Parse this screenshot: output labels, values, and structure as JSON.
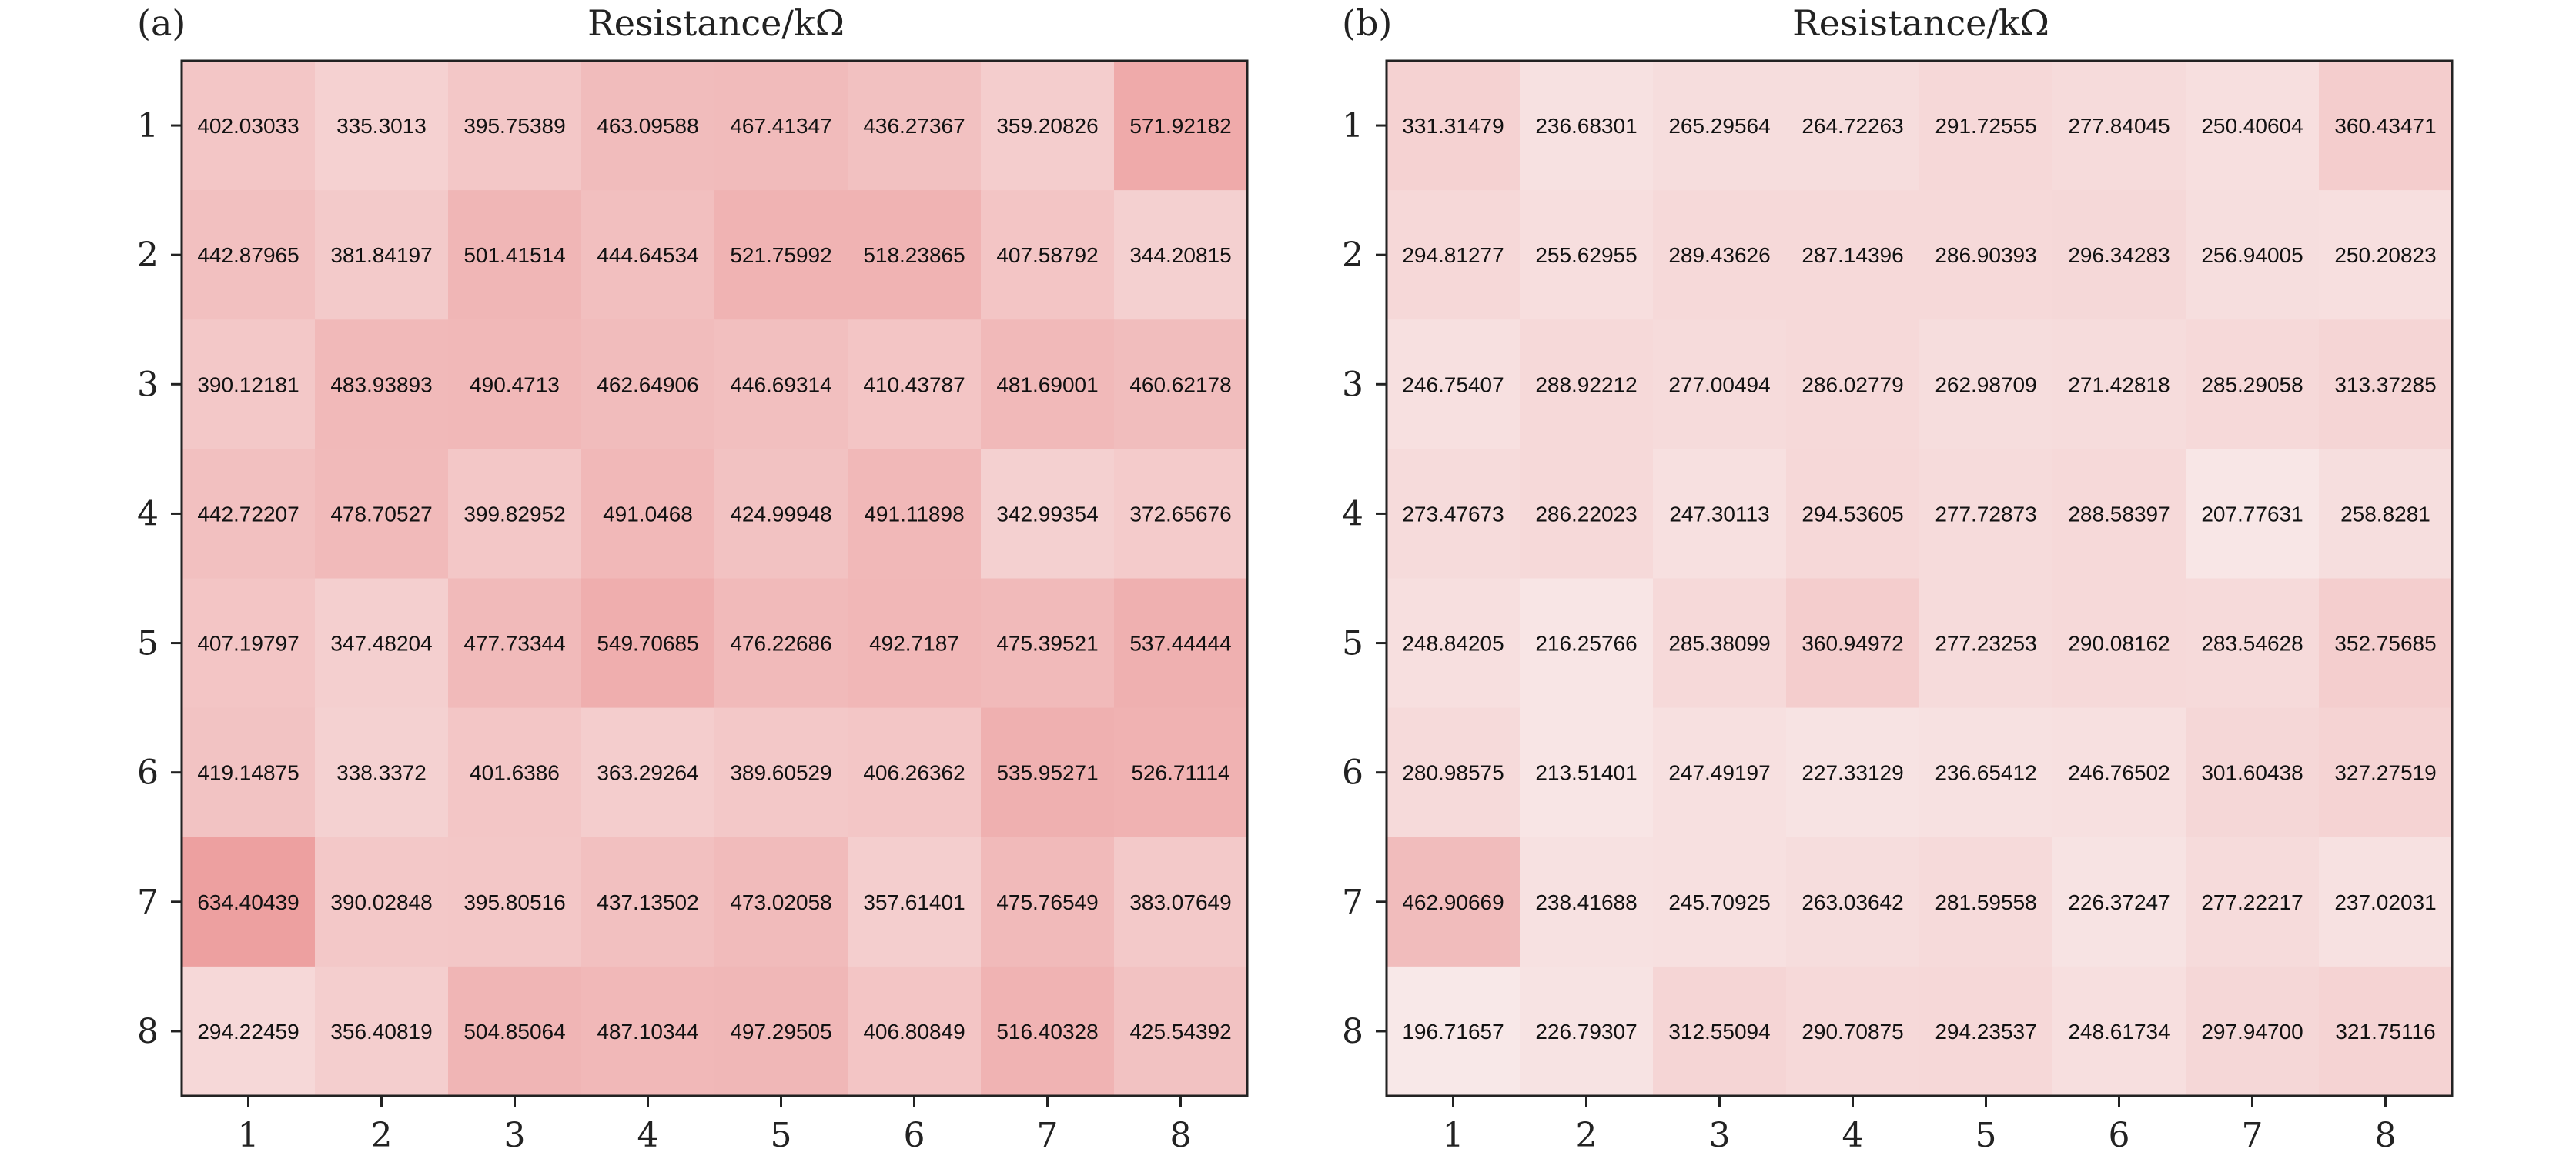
{
  "chart_data": [
    {
      "type": "heatmap",
      "panel_label": "(a)",
      "title": "Resistance/kΩ",
      "x_ticks": [
        "1",
        "2",
        "3",
        "4",
        "5",
        "6",
        "7",
        "8"
      ],
      "y_ticks": [
        "1",
        "2",
        "3",
        "4",
        "5",
        "6",
        "7",
        "8"
      ],
      "value_labels": [
        [
          "402.03033",
          "335.3013",
          "395.75389",
          "463.09588",
          "467.41347",
          "436.27367",
          "359.20826",
          "571.92182"
        ],
        [
          "442.87965",
          "381.84197",
          "501.41514",
          "444.64534",
          "521.75992",
          "518.23865",
          "407.58792",
          "344.20815"
        ],
        [
          "390.12181",
          "483.93893",
          "490.4713",
          "462.64906",
          "446.69314",
          "410.43787",
          "481.69001",
          "460.62178"
        ],
        [
          "442.72207",
          "478.70527",
          "399.82952",
          "491.0468",
          "424.99948",
          "491.11898",
          "342.99354",
          "372.65676"
        ],
        [
          "407.19797",
          "347.48204",
          "477.73344",
          "549.70685",
          "476.22686",
          "492.7187",
          "475.39521",
          "537.44444"
        ],
        [
          "419.14875",
          "338.3372",
          "401.6386",
          "363.29264",
          "389.60529",
          "406.26362",
          "535.95271",
          "526.71114"
        ],
        [
          "634.40439",
          "390.02848",
          "395.80516",
          "437.13502",
          "473.02058",
          "357.61401",
          "475.76549",
          "383.07649"
        ],
        [
          "294.22459",
          "356.40819",
          "504.85064",
          "487.10344",
          "497.29505",
          "406.80849",
          "516.40328",
          "425.54392"
        ]
      ],
      "color_low": "#f8e8e8",
      "color_high": "#eda0a0",
      "grid": false
    },
    {
      "type": "heatmap",
      "panel_label": "(b)",
      "title": "Resistance/kΩ",
      "x_ticks": [
        "1",
        "2",
        "3",
        "4",
        "5",
        "6",
        "7",
        "8"
      ],
      "y_ticks": [
        "1",
        "2",
        "3",
        "4",
        "5",
        "6",
        "7",
        "8"
      ],
      "value_labels": [
        [
          "331.31479",
          "236.68301",
          "265.29564",
          "264.72263",
          "291.72555",
          "277.84045",
          "250.40604",
          "360.43471"
        ],
        [
          "294.81277",
          "255.62955",
          "289.43626",
          "287.14396",
          "286.90393",
          "296.34283",
          "256.94005",
          "250.20823"
        ],
        [
          "246.75407",
          "288.92212",
          "277.00494",
          "286.02779",
          "262.98709",
          "271.42818",
          "285.29058",
          "313.37285"
        ],
        [
          "273.47673",
          "286.22023",
          "247.30113",
          "294.53605",
          "277.72873",
          "288.58397",
          "207.77631",
          "258.8281"
        ],
        [
          "248.84205",
          "216.25766",
          "285.38099",
          "360.94972",
          "277.23253",
          "290.08162",
          "283.54628",
          "352.75685"
        ],
        [
          "280.98575",
          "213.51401",
          "247.49197",
          "227.33129",
          "236.65412",
          "246.76502",
          "301.60438",
          "327.27519"
        ],
        [
          "462.90669",
          "238.41688",
          "245.70925",
          "263.03642",
          "281.59558",
          "226.37247",
          "277.22217",
          "237.02031"
        ],
        [
          "196.71657",
          "226.79307",
          "312.55094",
          "290.70875",
          "294.23537",
          "248.61734",
          "297.94700",
          "321.75116"
        ]
      ],
      "color_low": "#f8e8e8",
      "color_high": "#eda0a0",
      "grid": false
    }
  ]
}
